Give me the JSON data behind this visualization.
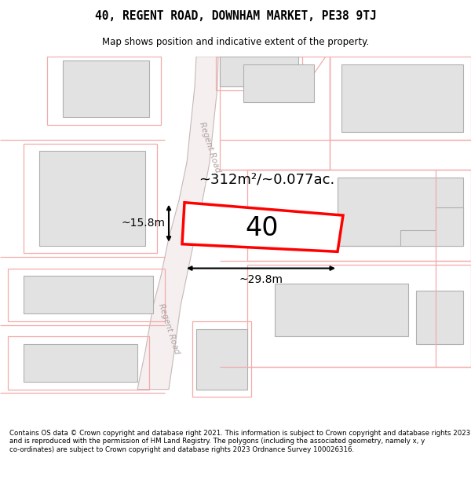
{
  "title": "40, REGENT ROAD, DOWNHAM MARKET, PE38 9TJ",
  "subtitle": "Map shows position and indicative extent of the property.",
  "footer": "Contains OS data © Crown copyright and database right 2021. This information is subject to Crown copyright and database rights 2023 and is reproduced with the permission of HM Land Registry. The polygons (including the associated geometry, namely x, y co-ordinates) are subject to Crown copyright and database rights 2023 Ordnance Survey 100026316.",
  "bg_color": "#ffffff",
  "map_bg": "#ffffff",
  "building_fill": "#e2e2e2",
  "building_edge": "#b0b0b0",
  "subject_fill": "#ffffff",
  "subject_edge": "#ff0000",
  "parcel_color": "#f4aaaa",
  "road_fill": "#f0e8e8",
  "road_edge": "#d8c8c8",
  "area_label": "~312m²/~0.077ac.",
  "width_label": "~29.8m",
  "height_label": "~15.8m",
  "number_label": "40",
  "road_label_upper": "Regent Road",
  "road_label_lower": "Regent Road"
}
